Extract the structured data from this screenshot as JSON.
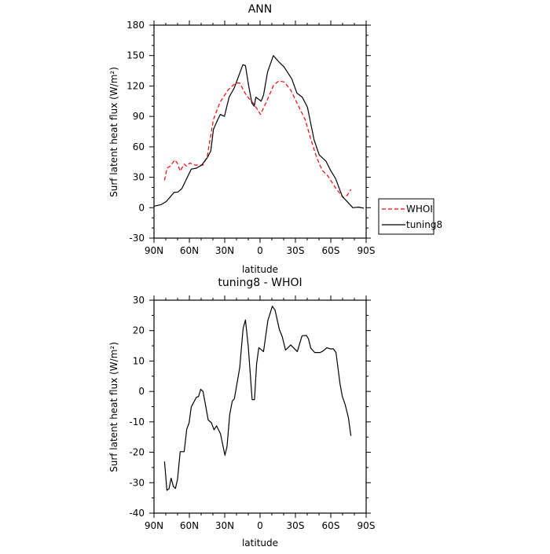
{
  "chart_data": [
    {
      "type": "line",
      "title": "ANN",
      "xlabel": "latitude",
      "ylabel": "Surf latent heat flux (W/m²)",
      "xlim": [
        90,
        -90
      ],
      "ylim": [
        -30,
        180
      ],
      "xticks": [
        90,
        60,
        30,
        0,
        -30,
        -60,
        -90
      ],
      "xtick_labels": [
        "90N",
        "60N",
        "30N",
        "0",
        "30S",
        "60S",
        "90S"
      ],
      "yticks": [
        -30,
        0,
        30,
        60,
        90,
        120,
        150,
        180
      ],
      "ytick_labels": [
        "-30",
        "0",
        "30",
        "60",
        "90",
        "120",
        "150",
        "180"
      ],
      "legend": {
        "placement": "outside-right",
        "entries": [
          "WHOI",
          "tuning8"
        ]
      },
      "series": [
        {
          "name": "WHOI",
          "color": "#ff0000",
          "style": "dashed",
          "x": [
            81.1,
            78.9,
            76.2,
            72.4,
            70.2,
            67.8,
            64.4,
            62.4,
            59.6,
            55.1,
            48.4,
            44.7,
            39.6,
            33.9,
            27.3,
            20.7,
            17.3,
            11.8,
            5.1,
            -0.4,
            -6,
            -11.6,
            -16,
            -20.4,
            -26,
            -32.7,
            -38.2,
            -42.7,
            -48.2,
            -52.7,
            -57.1,
            -63.8,
            -70.4,
            -73.8,
            -77.1
          ],
          "y": [
            27,
            39,
            41,
            47,
            44,
            36,
            43,
            41,
            44,
            42,
            42,
            51,
            87,
            104,
            116,
            123,
            123,
            111,
            102,
            92,
            106,
            121,
            125,
            124,
            116,
            100,
            87,
            69,
            49,
            37,
            32,
            20,
            10,
            12,
            18
          ]
        },
        {
          "name": "tuning8",
          "color": "#000000",
          "style": "solid",
          "x": [
            90,
            84,
            79.6,
            73,
            69.6,
            66.3,
            58.4,
            54,
            49.6,
            45,
            41.8,
            39.6,
            36.3,
            33.7,
            30.3,
            26.3,
            21.9,
            14.6,
            12.4,
            9.8,
            6.9,
            4.9,
            3.6,
            -0.9,
            -2.9,
            -6.4,
            -11.3,
            -15.8,
            -20.2,
            -23.6,
            -26.9,
            -31.3,
            -35.8,
            -40.2,
            -45.8,
            -50.2,
            -55.8,
            -60.2,
            -64,
            -69.8,
            -74.7,
            -78.7,
            -83.6,
            -88
          ],
          "y": [
            1.5,
            3,
            6,
            15,
            15.5,
            19,
            38,
            39,
            42,
            49,
            56,
            77,
            86,
            92,
            90,
            109,
            118,
            141,
            140,
            121,
            103,
            100,
            109,
            105,
            111,
            134,
            150,
            144,
            139,
            133,
            127,
            113,
            109,
            99,
            67,
            52,
            46,
            36,
            29,
            11,
            5,
            0,
            0.5,
            -0.5
          ]
        }
      ]
    },
    {
      "type": "line",
      "title": "tuning8 - WHOI",
      "xlabel": "latitude",
      "ylabel": "Surf latent heat flux (W/m²)",
      "xlim": [
        90,
        -90
      ],
      "ylim": [
        -40,
        30
      ],
      "xticks": [
        90,
        60,
        30,
        0,
        -30,
        -60,
        -90
      ],
      "xtick_labels": [
        "90N",
        "60N",
        "30N",
        "0",
        "30S",
        "60S",
        "90S"
      ],
      "yticks": [
        -40,
        -30,
        -20,
        -10,
        0,
        10,
        20,
        30
      ],
      "ytick_labels": [
        "-40",
        "-30",
        "-20",
        "-10",
        "0",
        "10",
        "20",
        "30"
      ],
      "series": [
        {
          "name": "tuning8 - WHOI",
          "color": "#000000",
          "style": "solid",
          "x": [
            81.1,
            79.1,
            77.3,
            75.5,
            73.6,
            71.8,
            70,
            67.8,
            64.4,
            62.2,
            60.2,
            58.4,
            54,
            52.2,
            50.4,
            48.4,
            44,
            41.3,
            39.1,
            36.9,
            33.6,
            29.8,
            28,
            25.8,
            23.6,
            21.8,
            17.3,
            14.4,
            12.4,
            10,
            6.7,
            4.7,
            2.9,
            1.1,
            -2.9,
            -6.6,
            -10.4,
            -12.7,
            -16.4,
            -18.7,
            -21.6,
            -26,
            -31.6,
            -35.6,
            -39.3,
            -41.1,
            -43.1,
            -46.4,
            -50.9,
            -53.8,
            -56.7,
            -59.3,
            -62.2,
            -64.4,
            -67.8,
            -69.8,
            -72.2,
            -74.9,
            -77.1
          ],
          "y": [
            -23,
            -32.5,
            -32,
            -28.5,
            -31.2,
            -31.9,
            -28.8,
            -19.8,
            -19.8,
            -12.4,
            -10.3,
            -5.1,
            -1.9,
            -1.7,
            0.7,
            0,
            -9.4,
            -10.3,
            -12.6,
            -11.3,
            -13.9,
            -21,
            -18,
            -7.7,
            -3.2,
            -2.4,
            7.8,
            20.7,
            23.5,
            14.7,
            -2.7,
            -2.7,
            9.1,
            14.4,
            13.1,
            23.3,
            28,
            26.7,
            20.3,
            18.1,
            13.6,
            15.3,
            13.1,
            18.3,
            18.4,
            17.3,
            14.2,
            12.8,
            12.8,
            13.4,
            14.4,
            14,
            14,
            12.8,
            2.6,
            -1.7,
            -4.3,
            -8.6,
            -14.6
          ]
        }
      ]
    }
  ]
}
